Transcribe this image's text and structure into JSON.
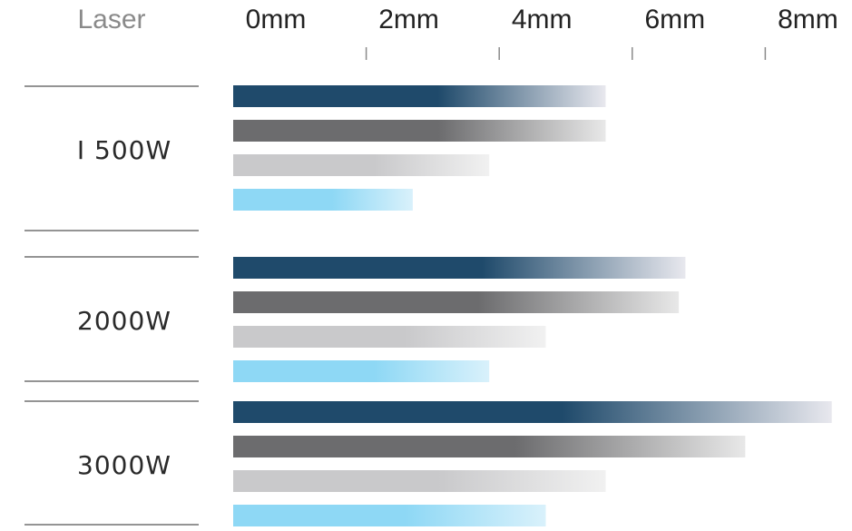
{
  "header": {
    "laser_label": "Laser"
  },
  "chart_data": {
    "type": "bar",
    "orientation": "horizontal",
    "x_unit": "mm",
    "xlim": [
      0,
      9
    ],
    "xticks": [
      {
        "value": 0,
        "label": "0mm"
      },
      {
        "value": 2,
        "label": "2mm"
      },
      {
        "value": 4,
        "label": "4mm"
      },
      {
        "value": 6,
        "label": "6mm"
      },
      {
        "value": 8,
        "label": "8mm"
      }
    ],
    "categories": [
      "1500W",
      "2000W",
      "3000W"
    ],
    "category_labels": [
      "I 500W",
      "2000W",
      "3000W"
    ],
    "series": [
      {
        "values": [
          5.6,
          6.8,
          9.0
        ],
        "color": "#1f4a6b",
        "fade_color": "#e8e8ee"
      },
      {
        "values": [
          5.6,
          6.7,
          7.7
        ],
        "color": "#6c6c6e",
        "fade_color": "#e8e8e8"
      },
      {
        "values": [
          3.85,
          4.7,
          5.6
        ],
        "color": "#c9c9cb",
        "fade_color": "#f1f1f1"
      },
      {
        "values": [
          2.7,
          3.85,
          4.7
        ],
        "color": "#8ed8f5",
        "fade_color": "#d9f1fb"
      }
    ]
  }
}
